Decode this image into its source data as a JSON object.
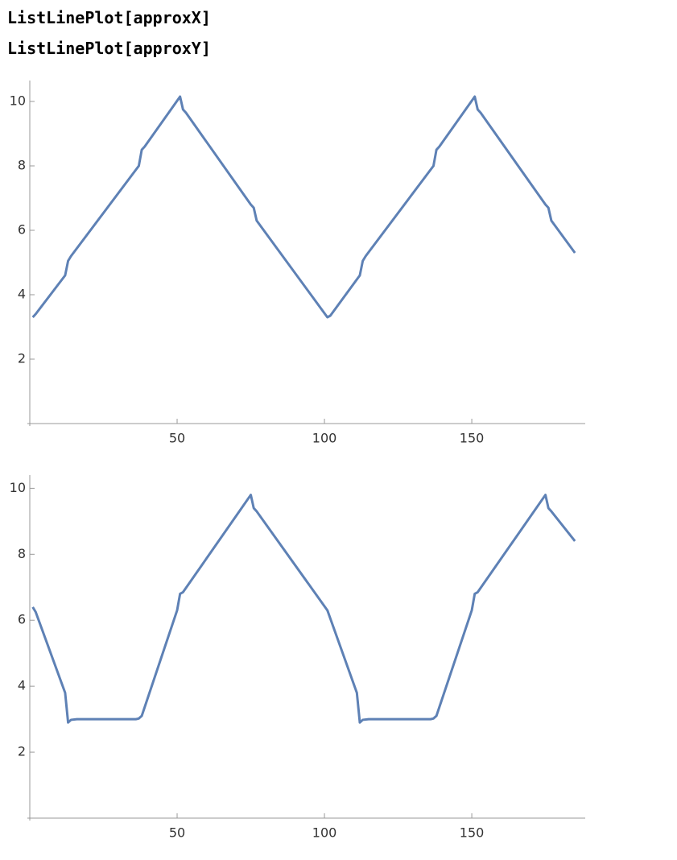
{
  "input": [
    "ListLinePlot[approxX]",
    "ListLinePlot[approxY]"
  ],
  "chart_data": [
    {
      "type": "line",
      "x": [
        1,
        2,
        12,
        13,
        14,
        37,
        38,
        39,
        51,
        52,
        53,
        75,
        76,
        77,
        101,
        102,
        112,
        113,
        114,
        137,
        138,
        139,
        151,
        152,
        153,
        175,
        176,
        177,
        185
      ],
      "series": [
        {
          "color": "#5e81b5",
          "values": [
            3.3,
            3.4,
            4.6,
            5.05,
            5.2,
            8.0,
            8.5,
            8.6,
            10.15,
            9.75,
            9.65,
            6.8,
            6.7,
            6.3,
            3.3,
            3.35,
            4.6,
            5.05,
            5.2,
            8.0,
            8.5,
            8.6,
            10.15,
            9.75,
            9.65,
            6.8,
            6.7,
            6.3,
            5.3
          ]
        }
      ],
      "xlim": [
        0,
        188.5
      ],
      "ylim": [
        0,
        10.65
      ],
      "xticks": [
        50,
        100,
        150
      ],
      "yticks": [
        2,
        4,
        6,
        8,
        10
      ]
    },
    {
      "type": "line",
      "x": [
        1,
        2,
        12,
        13,
        14,
        16,
        36,
        37,
        38,
        50,
        51,
        52,
        75,
        76,
        77,
        101,
        111,
        112,
        113,
        115,
        136,
        137,
        138,
        150,
        151,
        152,
        175,
        176,
        177,
        185
      ],
      "series": [
        {
          "color": "#5e81b5",
          "values": [
            6.4,
            6.25,
            3.8,
            2.9,
            2.98,
            3.0,
            3.0,
            3.02,
            3.1,
            6.3,
            6.8,
            6.85,
            9.8,
            9.4,
            9.3,
            6.3,
            3.8,
            2.9,
            2.98,
            3.0,
            3.0,
            3.02,
            3.1,
            6.3,
            6.8,
            6.85,
            9.8,
            9.4,
            9.3,
            8.4
          ]
        }
      ],
      "xlim": [
        0,
        188.5
      ],
      "ylim": [
        0,
        10.4
      ],
      "xticks": [
        50,
        100,
        150
      ],
      "yticks": [
        2,
        4,
        6,
        8,
        10
      ]
    }
  ]
}
